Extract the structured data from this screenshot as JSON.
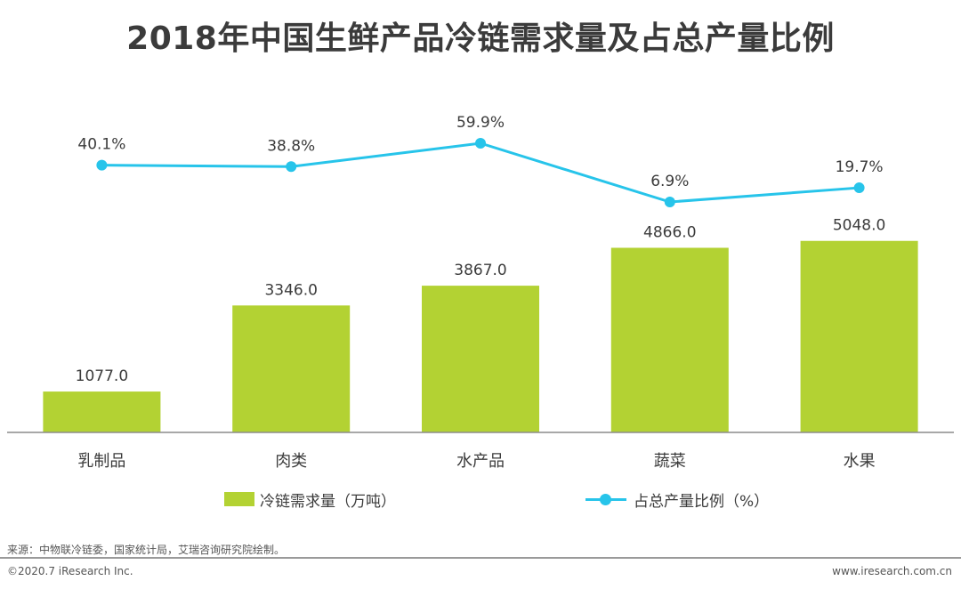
{
  "title": "2018年中国生鲜产品冷链需求量及占总产量比例",
  "colors": {
    "bar": "#b3d233",
    "line": "#27c4ea",
    "axis": "#8c8c8c",
    "text": "#3b3b3b"
  },
  "chart_data": {
    "type": "bar+line",
    "categories": [
      "乳制品",
      "肉类",
      "水产品",
      "蔬菜",
      "水果"
    ],
    "series": [
      {
        "name": "冷链需求量（万吨）",
        "type": "bar",
        "values": [
          1077.0,
          3346.0,
          3867.0,
          4866.0,
          5048.0
        ],
        "labels": [
          "1077.0",
          "3346.0",
          "3867.0",
          "4866.0",
          "5048.0"
        ]
      },
      {
        "name": "占总产量比例（%）",
        "type": "line",
        "values": [
          40.1,
          38.8,
          59.9,
          6.9,
          19.7
        ],
        "labels": [
          "40.1%",
          "38.8%",
          "59.9%",
          "6.9%",
          "19.7%"
        ]
      }
    ],
    "legend_position": "bottom"
  },
  "legend": {
    "bar_label": "冷链需求量（万吨）",
    "line_label": "占总产量比例（%）"
  },
  "source": "来源：中物联冷链委，国家统计局，艾瑞咨询研究院绘制。",
  "footer": {
    "copyright": "©2020.7 iResearch Inc.",
    "website": "www.iresearch.com.cn"
  }
}
